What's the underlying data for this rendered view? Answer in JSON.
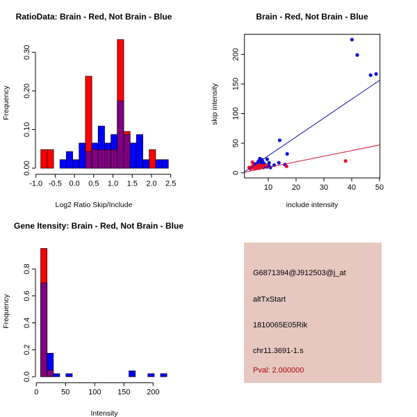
{
  "colors": {
    "brain": "#ff0000",
    "not_brain": "#0000ff",
    "overlap": "#7f007f",
    "info_bg": "#e6c8c1",
    "pval": "#b00000"
  },
  "chart_data": [
    {
      "type": "bar",
      "title": "RatioData: Brain - Red, Not Brain - Blue",
      "xlabel": "Log2 Ratio Skip/Include",
      "ylabel": "Frequency",
      "xlim": [
        -1.0,
        2.5
      ],
      "ylim": [
        0,
        0.33
      ],
      "xticks": [
        -1.0,
        -0.5,
        0.0,
        0.5,
        1.0,
        1.5,
        2.0,
        2.5
      ],
      "xtick_labels": [
        "-1.0",
        "-0.5",
        "0.0",
        "0.5",
        "1.0",
        "1.5",
        "2.0",
        "2.5"
      ],
      "yticks": [
        0,
        0.1,
        0.2,
        0.3
      ],
      "ytick_labels": [
        "0.00",
        "0.10",
        "0.20",
        "0.30"
      ],
      "bin_start": -0.873,
      "bin_width": 0.1655,
      "series": [
        {
          "name": "Brain",
          "color": "red",
          "values": [
            0.048,
            0.048,
            0,
            0,
            0,
            0,
            0,
            0.238,
            0.048,
            0.048,
            0.048,
            0.048,
            0.333,
            0.095,
            0,
            0,
            0,
            0.048,
            0,
            0
          ]
        },
        {
          "name": "Not Brain",
          "color": "blue",
          "values": [
            0,
            0,
            0,
            0.022,
            0.043,
            0.022,
            0.065,
            0.043,
            0.065,
            0.109,
            0.065,
            0.087,
            0.174,
            0.087,
            0.065,
            0.087,
            0.022,
            0,
            0.022,
            0.022
          ]
        }
      ]
    },
    {
      "type": "scatter",
      "title": "Brain - Red, Not Brain - Blue",
      "xlabel": "include intensity",
      "ylabel": "skip intensity",
      "xlim": [
        1.4,
        50.2
      ],
      "ylim": [
        -8.5,
        234
      ],
      "xticks": [
        10,
        20,
        30,
        40,
        50
      ],
      "xtick_labels": [
        "10",
        "20",
        "30",
        "40",
        "50"
      ],
      "yticks": [
        0,
        50,
        100,
        150,
        200
      ],
      "ytick_labels": [
        "0",
        "50",
        "100",
        "150",
        "200"
      ],
      "series": [
        {
          "name": "Not Brain",
          "color": "blue",
          "points": [
            [
              40.1,
              225
            ],
            [
              42,
              199
            ],
            [
              46.8,
              165
            ],
            [
              48.8,
              167
            ],
            [
              14.1,
              55
            ],
            [
              16.8,
              32
            ],
            [
              9.6,
              23
            ],
            [
              10.3,
              17
            ],
            [
              13.8,
              17
            ],
            [
              12.1,
              13
            ],
            [
              10.8,
              9
            ],
            [
              16,
              14
            ],
            [
              7,
              24
            ],
            [
              6.8,
              21
            ],
            [
              7.2,
              19
            ],
            [
              6.5,
              17
            ],
            [
              7.5,
              16
            ],
            [
              8,
              19
            ],
            [
              6,
              14
            ],
            [
              5.5,
              12
            ],
            [
              5,
              10
            ],
            [
              6.3,
              11
            ],
            [
              7.8,
              13
            ],
            [
              8.5,
              12
            ],
            [
              5.8,
              9
            ],
            [
              4.8,
              13
            ],
            [
              6.9,
              14
            ],
            [
              7.4,
              10
            ],
            [
              9,
              11
            ],
            [
              8.2,
              9
            ],
            [
              5.2,
              15
            ],
            [
              6.6,
              8
            ],
            [
              7.1,
              12
            ],
            [
              6.1,
              16
            ],
            [
              5.6,
              11
            ],
            [
              4.6,
              9
            ],
            [
              7.7,
              22
            ],
            [
              6.4,
              19
            ],
            [
              8.8,
              14
            ],
            [
              9.5,
              10
            ],
            [
              10.2,
              12
            ],
            [
              5.9,
              13
            ],
            [
              7.3,
              17
            ],
            [
              6.7,
              15
            ],
            [
              5.3,
              8
            ],
            [
              8.4,
              16
            ]
          ]
        },
        {
          "name": "Brain",
          "color": "red",
          "points": [
            [
              37.8,
              20
            ],
            [
              16.6,
              11
            ],
            [
              4.3,
              18
            ],
            [
              3.1,
              9
            ],
            [
              3.6,
              7
            ],
            [
              4.8,
              8
            ],
            [
              5.5,
              10
            ],
            [
              6.2,
              12
            ],
            [
              7,
              9
            ],
            [
              5,
              11
            ],
            [
              6.8,
              13
            ],
            [
              7.5,
              11
            ],
            [
              4.1,
              10
            ],
            [
              5.8,
              8
            ],
            [
              6.5,
              10
            ],
            [
              8,
              12
            ],
            [
              9.2,
              13
            ],
            [
              4.6,
              12
            ],
            [
              5.3,
              9
            ],
            [
              7.8,
              10
            ],
            [
              3.8,
              8
            ]
          ]
        }
      ],
      "fit_lines": [
        {
          "name": "Not Brain",
          "color": "blue",
          "intercept": -2.9,
          "slope": 3.18
        },
        {
          "name": "Brain",
          "color": "red",
          "intercept": -0.3,
          "slope": 0.946
        }
      ]
    },
    {
      "type": "bar",
      "title": "Gene Itensity: Brain - Red, Not Brain - Blue",
      "xlabel": "Intensity",
      "ylabel": "Frequency",
      "xlim": [
        0,
        225
      ],
      "ylim": [
        0,
        0.95
      ],
      "xticks": [
        0,
        50,
        100,
        150,
        200
      ],
      "xtick_labels": [
        "0",
        "50",
        "100",
        "150",
        "200"
      ],
      "yticks": [
        0,
        0.2,
        0.4,
        0.6,
        0.8
      ],
      "ytick_labels": [
        "0.0",
        "0.2",
        "0.4",
        "0.6",
        "0.8"
      ],
      "bin_start": 7.5,
      "bin_width": 10.8,
      "series": [
        {
          "name": "Brain",
          "color": "red",
          "values": [
            0.952,
            0.048,
            0,
            0,
            0,
            0,
            0,
            0,
            0,
            0,
            0,
            0,
            0,
            0,
            0,
            0,
            0,
            0,
            0,
            0
          ]
        },
        {
          "name": "Not Brain",
          "color": "blue",
          "values": [
            0.696,
            0.174,
            0.022,
            0,
            0.022,
            0,
            0,
            0,
            0,
            0,
            0,
            0,
            0,
            0,
            0.043,
            0,
            0,
            0.022,
            0,
            0.022
          ]
        }
      ]
    }
  ],
  "info": {
    "probe": "G6871394@J912503@j_at",
    "event": "altTxStart",
    "gene": "1810065E05Rik",
    "location": "chr11.3691-1.s",
    "pval": "Pval: 2.000000"
  }
}
